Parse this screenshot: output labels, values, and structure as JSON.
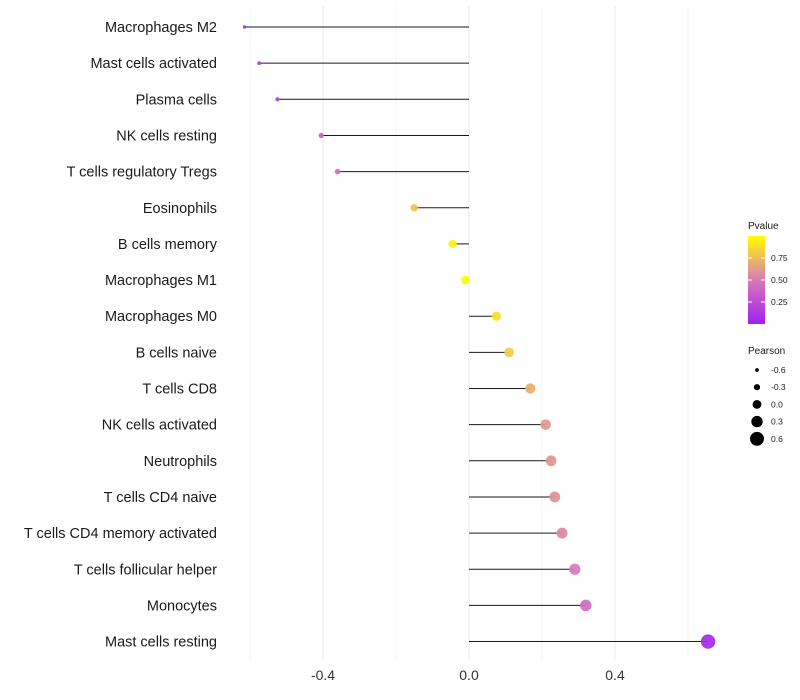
{
  "chart_data": {
    "type": "lollipop",
    "x_axis": {
      "ticks": [
        -0.4,
        0.0,
        0.4
      ],
      "tick_labels": [
        "-0.4",
        "0.0",
        "0.4"
      ],
      "minor_ticks": [
        -0.6,
        -0.2,
        0.2,
        0.6
      ],
      "range": [
        -0.7,
        0.72
      ]
    },
    "rows": [
      {
        "label": "Macrophages M2",
        "value": -0.615,
        "pvalue": 0.12
      },
      {
        "label": "Mast cells activated",
        "value": -0.575,
        "pvalue": 0.15
      },
      {
        "label": "Plasma cells",
        "value": -0.525,
        "pvalue": 0.22
      },
      {
        "label": "NK cells resting",
        "value": -0.405,
        "pvalue": 0.38
      },
      {
        "label": "T cells regulatory  Tregs",
        "value": -0.36,
        "pvalue": 0.45
      },
      {
        "label": "Eosinophils",
        "value": -0.15,
        "pvalue": 0.78
      },
      {
        "label": "B cells memory",
        "value": -0.045,
        "pvalue": 0.95
      },
      {
        "label": "Macrophages M1",
        "value": -0.01,
        "pvalue": 0.99
      },
      {
        "label": "Macrophages M0",
        "value": 0.075,
        "pvalue": 0.88
      },
      {
        "label": "B cells naive",
        "value": 0.11,
        "pvalue": 0.82
      },
      {
        "label": "T cells CD8",
        "value": 0.168,
        "pvalue": 0.7
      },
      {
        "label": "NK cells activated",
        "value": 0.21,
        "pvalue": 0.62
      },
      {
        "label": "Neutrophils",
        "value": 0.225,
        "pvalue": 0.6
      },
      {
        "label": "T cells CD4 naive",
        "value": 0.235,
        "pvalue": 0.58
      },
      {
        "label": "T cells CD4 memory activated",
        "value": 0.255,
        "pvalue": 0.55
      },
      {
        "label": "T cells follicular helper",
        "value": 0.29,
        "pvalue": 0.5
      },
      {
        "label": "Monocytes",
        "value": 0.32,
        "pvalue": 0.42
      },
      {
        "label": "Mast cells resting",
        "value": 0.655,
        "pvalue": 0.05
      }
    ],
    "legend_pvalue": {
      "title": "Pvalue",
      "ticks": [
        0.75,
        0.5,
        0.25
      ],
      "tick_labels": [
        "0.75",
        "0.50",
        "0.25"
      ],
      "colors": {
        "low": "#a020f0",
        "mid": "#d87ab8",
        "high": "#ffff00"
      }
    },
    "legend_pearson": {
      "title": "Pearson",
      "entries": [
        {
          "label": "-0.6",
          "value": -0.6
        },
        {
          "label": "-0.3",
          "value": -0.3
        },
        {
          "label": "0.0",
          "value": 0.0
        },
        {
          "label": "0.3",
          "value": 0.3
        },
        {
          "label": "0.6",
          "value": 0.6
        }
      ]
    }
  }
}
